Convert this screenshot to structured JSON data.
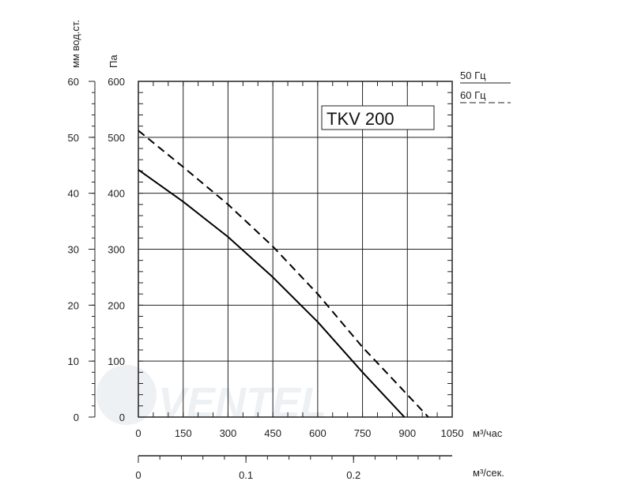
{
  "chart_data": {
    "type": "line",
    "title": "",
    "model_label": "TKV 200",
    "x": {
      "label": "м³/час",
      "min": 0,
      "max": 1050,
      "ticks": [
        0,
        150,
        300,
        450,
        600,
        750,
        900,
        1050
      ]
    },
    "x2": {
      "label": "м³/сек.",
      "ticks": [
        0,
        0.1,
        0.2
      ]
    },
    "y": {
      "label": "Па",
      "min": 0,
      "max": 600,
      "ticks": [
        0,
        100,
        200,
        300,
        400,
        500,
        600
      ]
    },
    "y2": {
      "label": "мм вод.ст.",
      "ticks": [
        0,
        10,
        20,
        30,
        40,
        50,
        60
      ]
    },
    "grid": true,
    "series": [
      {
        "name": "50 Гц",
        "style": "solid",
        "points": [
          [
            0,
            442
          ],
          [
            150,
            385
          ],
          [
            300,
            322
          ],
          [
            450,
            250
          ],
          [
            600,
            170
          ],
          [
            750,
            80
          ],
          [
            890,
            0
          ]
        ]
      },
      {
        "name": "60 Гц",
        "style": "dashed",
        "points": [
          [
            0,
            512
          ],
          [
            150,
            447
          ],
          [
            300,
            380
          ],
          [
            450,
            305
          ],
          [
            600,
            220
          ],
          [
            750,
            125
          ],
          [
            900,
            40
          ],
          [
            970,
            0
          ]
        ]
      }
    ]
  }
}
